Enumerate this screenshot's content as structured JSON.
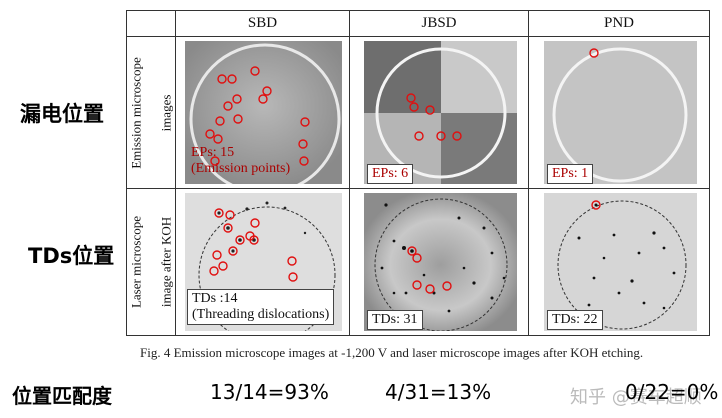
{
  "side_labels": {
    "leakage_position": "漏电位置",
    "td_position": "TDs位置"
  },
  "table": {
    "columns": [
      "SBD",
      "JBSD",
      "PND"
    ],
    "row_labels": {
      "emission": [
        "Emission microscope",
        "images"
      ],
      "laser": [
        "Laser microscope",
        "image after KOH"
      ]
    },
    "emission_labels": {
      "sbd_line1": "EPs: 15",
      "sbd_line2": "(Emission points)",
      "jbsd": "EPs: 6",
      "pnd": "EPs: 1"
    },
    "laser_labels": {
      "sbd_line1": "TDs :14",
      "sbd_line2": "(Threading dislocations)",
      "jbsd": "TDs: 31",
      "pnd": "TDs: 22"
    }
  },
  "caption": "Fig. 4  Emission microscope images at -1,200 V and laser microscope images after KOH etching.",
  "match": {
    "label": "位置匹配度",
    "sbd": "13/14=93%",
    "jbsd": "4/31=13%",
    "pnd": "0/22=0%"
  },
  "watermark": "知乎 @赛车超顺"
}
